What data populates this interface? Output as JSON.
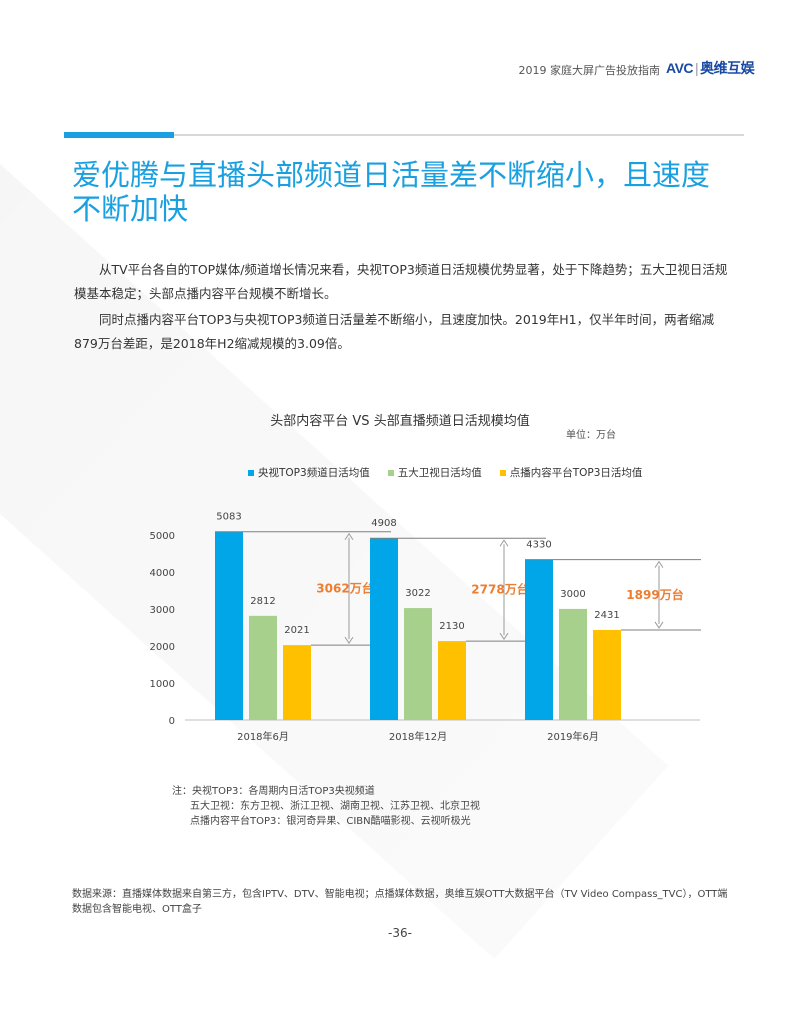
{
  "header": {
    "report_title": "2019 家庭大屏广告投放指南",
    "logo_text": "AVC",
    "logo_cn": "奥维互娱"
  },
  "page_title": "爱优腾与直播头部频道日活量差不断缩小，且速度不断加快",
  "paragraphs": [
    "从TV平台各自的TOP媒体/频道增长情况来看，央视TOP3频道日活规模优势显著，处于下降趋势；五大卫视日活规模基本稳定；头部点播内容平台规模不断增长。",
    "同时点播内容平台TOP3与央视TOP3频道日活量差不断缩小，且速度加快。2019年H1，仅半年时间，两者缩减879万台差距，是2018年H2缩减规模的3.09倍。"
  ],
  "chart_data": {
    "type": "bar",
    "title": "头部内容平台 VS 头部直播频道日活规模均值",
    "unit": "单位：万台",
    "categories": [
      "2018年6月",
      "2018年12月",
      "2019年6月"
    ],
    "series": [
      {
        "name": "央视TOP3频道日活均值",
        "color": "#00a6e8",
        "values": [
          5083,
          4908,
          4330
        ]
      },
      {
        "name": "五大卫视日活均值",
        "color": "#a8d08d",
        "values": [
          2812,
          3022,
          3000
        ]
      },
      {
        "name": "点播内容平台TOP3日活均值",
        "color": "#ffc000",
        "values": [
          2021,
          2130,
          2431
        ]
      }
    ],
    "gap_annotations": [
      "3062万台",
      "2778万台",
      "1899万台"
    ],
    "annotation_color": "#ed7d31",
    "yticks": [
      0,
      1000,
      2000,
      3000,
      4000,
      5000
    ],
    "ylim": [
      0,
      5400
    ],
    "xlabel": "",
    "ylabel": "",
    "legend_position": "top",
    "grid": false
  },
  "notes": [
    "注：央视TOP3：各周期内日活TOP3央视频道",
    "五大卫视：东方卫视、浙江卫视、湖南卫视、江苏卫视、北京卫视",
    "点播内容平台TOP3：银河奇异果、CIBN酷喵影视、云视听极光"
  ],
  "source": "数据来源：直播媒体数据来自第三方，包含IPTV、DTV、智能电视；点播媒体数据，奥维互娱OTT大数据平台（TV Video Compass_TVC），OTT端数据包含智能电视、OTT盒子",
  "page_number": "-36-"
}
